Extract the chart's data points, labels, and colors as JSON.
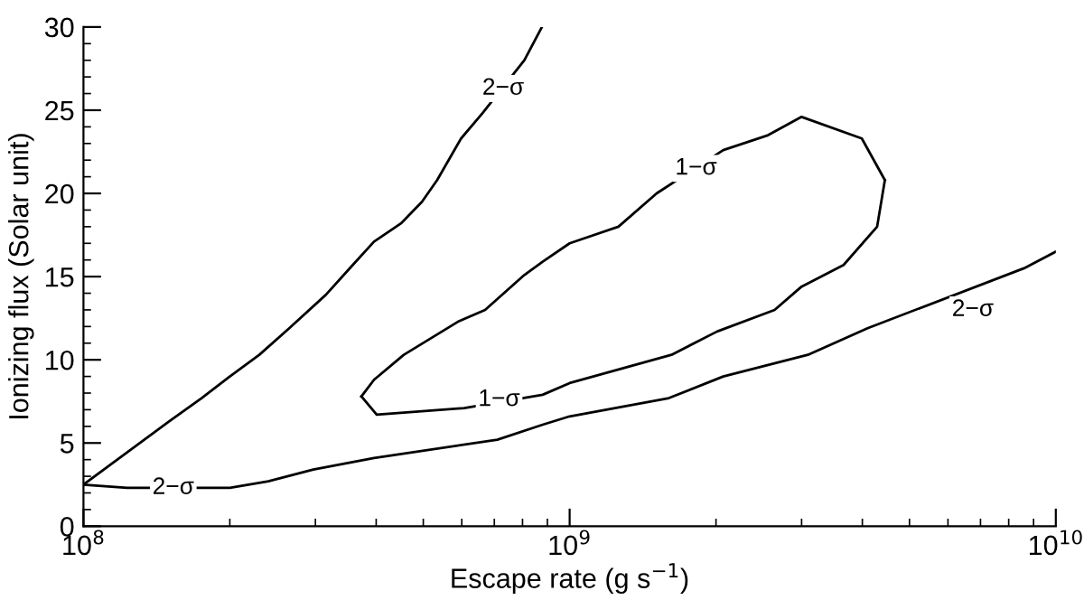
{
  "chart_data": {
    "type": "line",
    "xlabel": "Escape rate (g s$^{−1}$)",
    "ylabel": "Ionizing flux (Solar unit)",
    "log": "x",
    "grid": false,
    "marker": "none",
    "line_style": "solid",
    "xlim": [
      100000000.0,
      10000000000.0
    ],
    "xticks": [
      {
        "value": 100000000.0,
        "label": "10$^{8}$"
      },
      {
        "value": 1000000000.0,
        "label": "10$^{9}$"
      },
      {
        "value": 10000000000.0,
        "label": "10$^{10}$"
      }
    ],
    "ylim": [
      0,
      30
    ],
    "yticks": [
      0,
      5,
      10,
      15,
      20,
      25,
      30
    ],
    "series": [
      {
        "color": "#000000",
        "x": [
          100000000.0,
          150000000.0,
          175000000.0,
          200000000.0,
          230000000.0,
          265000000.0,
          315000000.0,
          358000000.0,
          396000000.0,
          450000000.0,
          497000000.0,
          534000000.0,
          598000000.0,
          661000000.0,
          807000000.0,
          877000000.0
        ],
        "values": [
          2.5,
          6.3,
          7.7,
          9.0,
          10.3,
          11.9,
          13.9,
          15.7,
          17.1,
          18.2,
          19.5,
          20.8,
          23.3,
          24.8,
          28.0,
          30
        ]
      },
      {
        "color": "#000000",
        "x": [
          100000000.0,
          123000000.0,
          200000000.0,
          240000000.0,
          297000000.0,
          396000000.0,
          710000000.0,
          880000000.0,
          1000000000.0,
          1600000000.0,
          2070000000.0,
          3090000000.0,
          4100000000.0,
          8600000000.0,
          10000000000.0
        ],
        "values": [
          2.5,
          2.3,
          2.3,
          2.7,
          3.4,
          4.1,
          5.2,
          6.1,
          6.6,
          7.7,
          9.0,
          10.3,
          11.9,
          15.5,
          16.5
        ]
      },
      {
        "color": "#000000",
        "x": [
          373000000.0,
          396000000.0,
          456000000.0,
          590000000.0,
          670000000.0,
          807000000.0,
          880000000.0,
          1000000000.0,
          1260000000.0,
          1510000000.0,
          2070000000.0,
          2560000000.0,
          3000000000.0,
          3990000000.0,
          4450000000.0
        ],
        "values": [
          7.8,
          8.8,
          10.3,
          12.3,
          13.0,
          15.1,
          15.9,
          17.0,
          18.0,
          20.0,
          22.6,
          23.5,
          24.6,
          23.3,
          20.8
        ]
      },
      {
        "color": "#000000",
        "x": [
          373000000.0,
          401000000.0,
          607000000.0,
          880000000.0,
          1000000000.0,
          1620000000.0,
          2010000000.0,
          2640000000.0,
          3000000000.0,
          3660000000.0,
          4290000000.0,
          4450000000.0
        ],
        "values": [
          7.8,
          6.7,
          7.1,
          7.9,
          8.6,
          10.3,
          11.7,
          13.0,
          14.4,
          15.7,
          18.0,
          20.8
        ]
      }
    ],
    "annotations": [
      {
        "text": "2−σ",
        "x": 730000000.0,
        "y": 26.3
      },
      {
        "text": "2−σ",
        "x": 153000000.0,
        "y": 2.3
      },
      {
        "text": "2−σ",
        "x": 6750000000.0,
        "y": 13.0
      },
      {
        "text": "1−σ",
        "x": 1820000000.0,
        "y": 21.5
      },
      {
        "text": "1−σ",
        "x": 716000000.0,
        "y": 7.6
      }
    ]
  }
}
